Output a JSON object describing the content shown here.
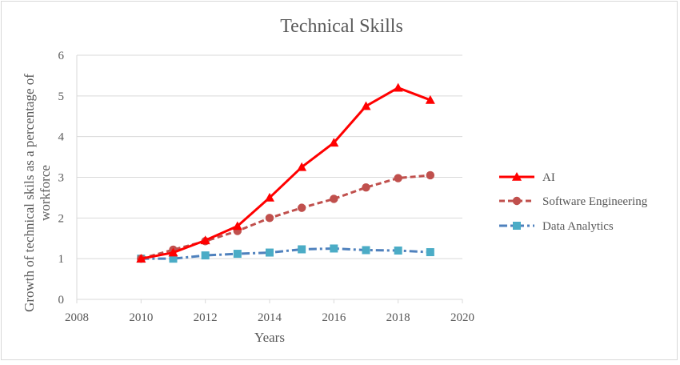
{
  "chart_data": {
    "type": "line",
    "title": "Technical Skills",
    "xlabel": "Years",
    "ylabel_line1": "Growth of technical skils as a percentage of",
    "ylabel_line2": "workforce",
    "xlim": [
      2008,
      2020
    ],
    "ylim": [
      0,
      6
    ],
    "x_ticks": [
      2008,
      2010,
      2012,
      2014,
      2016,
      2018,
      2020
    ],
    "y_ticks": [
      0,
      1,
      2,
      3,
      4,
      5,
      6
    ],
    "grid": "horizontal",
    "legend_position": "right",
    "series": [
      {
        "name": "AI",
        "color": "#ff0000",
        "line_style": "solid",
        "marker": "triangle",
        "x": [
          2010,
          2011,
          2012,
          2013,
          2014,
          2015,
          2016,
          2017,
          2018,
          2019
        ],
        "y": [
          1.0,
          1.15,
          1.45,
          1.8,
          2.5,
          3.25,
          3.85,
          4.75,
          5.2,
          4.9
        ]
      },
      {
        "name": "Software Engineering",
        "color": "#c0504d",
        "line_style": "dashed",
        "marker": "circle",
        "x": [
          2010,
          2011,
          2012,
          2013,
          2014,
          2015,
          2016,
          2017,
          2018,
          2019
        ],
        "y": [
          1.0,
          1.22,
          1.43,
          1.68,
          2.0,
          2.25,
          2.47,
          2.75,
          2.98,
          3.05
        ]
      },
      {
        "name": "Data Analytics",
        "color": "#4bacc6",
        "line_color": "#4f81bd",
        "line_style": "dashdot",
        "marker": "square",
        "x": [
          2010,
          2011,
          2012,
          2013,
          2014,
          2015,
          2016,
          2017,
          2018,
          2019
        ],
        "y": [
          1.0,
          1.0,
          1.08,
          1.12,
          1.15,
          1.23,
          1.25,
          1.21,
          1.2,
          1.16
        ]
      }
    ]
  }
}
